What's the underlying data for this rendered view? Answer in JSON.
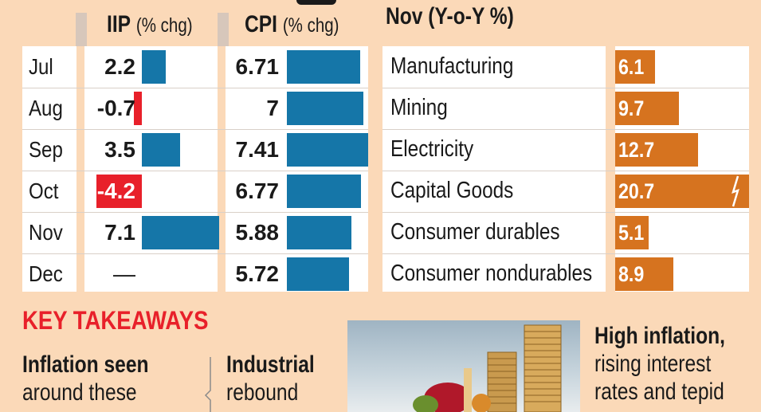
{
  "headers": {
    "iip": {
      "bold": "IIP",
      "rest": "(% chg)"
    },
    "cpi": {
      "bold": "CPI",
      "rest": "(% chg)"
    },
    "nov": {
      "bold": "Nov (Y-o-Y %)"
    }
  },
  "chart_data": [
    {
      "type": "bar",
      "title": "IIP (% chg)",
      "categories": [
        "Jul",
        "Aug",
        "Sep",
        "Oct",
        "Nov",
        "Dec"
      ],
      "values": [
        2.2,
        -0.7,
        3.5,
        -4.2,
        7.1,
        null
      ],
      "labels": [
        "2.2",
        "-0.7",
        "3.5",
        "-4.2",
        "7.1",
        "—"
      ]
    },
    {
      "type": "bar",
      "title": "CPI (% chg)",
      "categories": [
        "Jul",
        "Aug",
        "Sep",
        "Oct",
        "Nov",
        "Dec"
      ],
      "values": [
        6.71,
        7,
        7.41,
        6.77,
        5.88,
        5.72
      ],
      "labels": [
        "6.71",
        "7",
        "7.41",
        "6.77",
        "5.88",
        "5.72"
      ]
    },
    {
      "type": "bar",
      "title": "Nov (Y-o-Y %)",
      "categories": [
        "Manufacturing",
        "Mining",
        "Electricity",
        "Capital Goods",
        "Consumer durables",
        "Consumer nondurables"
      ],
      "values": [
        6.1,
        9.7,
        12.7,
        20.7,
        5.1,
        8.9
      ],
      "labels": [
        "6.1",
        "9.7",
        "12.7",
        "20.7",
        "5.1",
        "8.9"
      ]
    }
  ],
  "colors": {
    "positive": "#1576a8",
    "negative": "#e8202a",
    "industry": "#d6731f",
    "background": "#fbd9b8"
  },
  "takeaways": {
    "title": "KEY TAKEAWAYS",
    "col1_bold": "Inflation seen",
    "col1_text": "around these",
    "col2_bold": "Industrial",
    "col2_text": "rebound",
    "col3_bold": "High inflation,",
    "col3_line2": "rising interest",
    "col3_line3": "rates and tepid"
  }
}
